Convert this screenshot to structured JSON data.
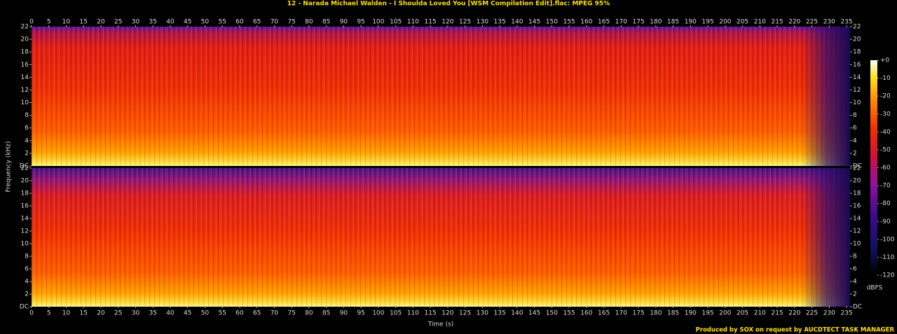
{
  "chart_data": {
    "type": "spectrogram",
    "title": "12 - Narada Michael Walden - I Shoulda Loved You [WSM Compilation Edit].flac: MPEG 95%",
    "x_label": "Time (s)",
    "y_label": "Frequency (kHz)",
    "xlim": [
      0,
      236
    ],
    "xticks": [
      0,
      5,
      10,
      15,
      20,
      25,
      30,
      35,
      40,
      45,
      50,
      55,
      60,
      65,
      70,
      75,
      80,
      85,
      90,
      95,
      100,
      105,
      110,
      115,
      120,
      125,
      130,
      135,
      140,
      145,
      150,
      155,
      160,
      165,
      170,
      175,
      180,
      185,
      190,
      195,
      200,
      205,
      210,
      215,
      220,
      225,
      230,
      235
    ],
    "ylim": [
      0,
      22
    ],
    "yticks": [
      {
        "value": 0,
        "label": "DC"
      },
      2,
      4,
      6,
      8,
      10,
      12,
      14,
      16,
      18,
      20,
      22
    ],
    "colorbar": {
      "label": "dBFS",
      "lim": [
        -120,
        0
      ],
      "ticks": [
        {
          "value": 0,
          "label": "+0"
        },
        -10,
        -20,
        -30,
        -40,
        -50,
        -60,
        -70,
        -80,
        -90,
        -100,
        -110,
        -120
      ]
    },
    "footer": "Produced by SOX on request by AUCDTECT TASK MANAGER"
  }
}
